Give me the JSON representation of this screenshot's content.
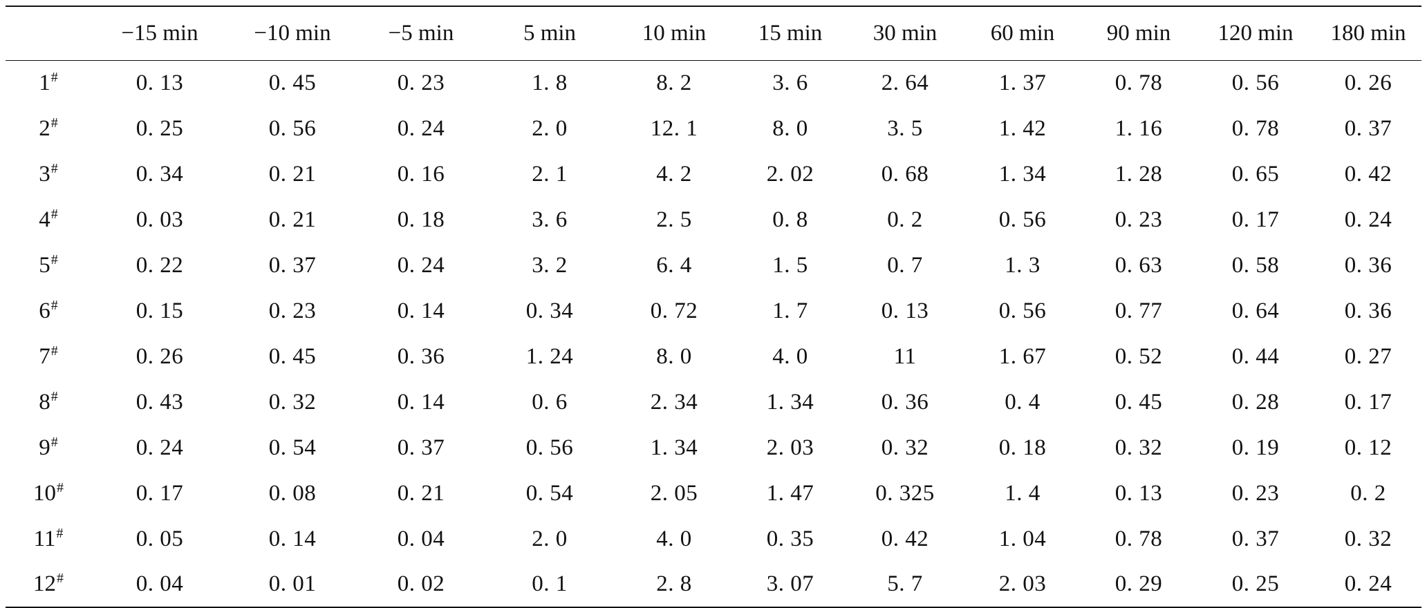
{
  "table": {
    "columns": [
      "",
      "−15 min",
      "−10 min",
      "−5 min",
      "5 min",
      "10 min",
      "15 min",
      "30 min",
      "60 min",
      "90 min",
      "120 min",
      "180 min"
    ],
    "rows": [
      {
        "label": "1",
        "mark": "#",
        "values": [
          "0. 13",
          "0. 45",
          "0. 23",
          "1. 8",
          "8. 2",
          "3. 6",
          "2. 64",
          "1. 37",
          "0. 78",
          "0. 56",
          "0. 26"
        ]
      },
      {
        "label": "2",
        "mark": "#",
        "values": [
          "0. 25",
          "0. 56",
          "0. 24",
          "2. 0",
          "12. 1",
          "8. 0",
          "3. 5",
          "1. 42",
          "1. 16",
          "0. 78",
          "0. 37"
        ]
      },
      {
        "label": "3",
        "mark": "#",
        "values": [
          "0. 34",
          "0. 21",
          "0. 16",
          "2. 1",
          "4. 2",
          "2. 02",
          "0. 68",
          "1. 34",
          "1. 28",
          "0. 65",
          "0. 42"
        ]
      },
      {
        "label": "4",
        "mark": "#",
        "values": [
          "0. 03",
          "0. 21",
          "0. 18",
          "3. 6",
          "2. 5",
          "0. 8",
          "0. 2",
          "0. 56",
          "0. 23",
          "0. 17",
          "0. 24"
        ]
      },
      {
        "label": "5",
        "mark": "#",
        "values": [
          "0. 22",
          "0. 37",
          "0. 24",
          "3. 2",
          "6. 4",
          "1. 5",
          "0. 7",
          "1. 3",
          "0. 63",
          "0. 58",
          "0. 36"
        ]
      },
      {
        "label": "6",
        "mark": "#",
        "values": [
          "0. 15",
          "0. 23",
          "0. 14",
          "0. 34",
          "0. 72",
          "1. 7",
          "0. 13",
          "0. 56",
          "0. 77",
          "0. 64",
          "0. 36"
        ]
      },
      {
        "label": "7",
        "mark": "#",
        "values": [
          "0. 26",
          "0. 45",
          "0. 36",
          "1. 24",
          "8. 0",
          "4. 0",
          "11",
          "1. 67",
          "0. 52",
          "0. 44",
          "0. 27"
        ]
      },
      {
        "label": "8",
        "mark": "#",
        "values": [
          "0. 43",
          "0. 32",
          "0. 14",
          "0. 6",
          "2. 34",
          "1. 34",
          "0. 36",
          "0. 4",
          "0. 45",
          "0. 28",
          "0. 17"
        ]
      },
      {
        "label": "9",
        "mark": "#",
        "values": [
          "0. 24",
          "0. 54",
          "0. 37",
          "0. 56",
          "1. 34",
          "2. 03",
          "0. 32",
          "0. 18",
          "0. 32",
          "0. 19",
          "0. 12"
        ]
      },
      {
        "label": "10",
        "mark": "#",
        "values": [
          "0. 17",
          "0. 08",
          "0. 21",
          "0. 54",
          "2. 05",
          "1. 47",
          "0. 325",
          "1. 4",
          "0. 13",
          "0. 23",
          "0. 2"
        ]
      },
      {
        "label": "11",
        "mark": "#",
        "values": [
          "0. 05",
          "0. 14",
          "0. 04",
          "2. 0",
          "4. 0",
          "0. 35",
          "0. 42",
          "1. 04",
          "0. 78",
          "0. 37",
          "0. 32"
        ]
      },
      {
        "label": "12",
        "mark": "#",
        "values": [
          "0. 04",
          "0. 01",
          "0. 02",
          "0. 1",
          "2. 8",
          "3. 07",
          "5. 7",
          "2. 03",
          "0. 29",
          "0. 25",
          "0. 24"
        ]
      }
    ]
  }
}
